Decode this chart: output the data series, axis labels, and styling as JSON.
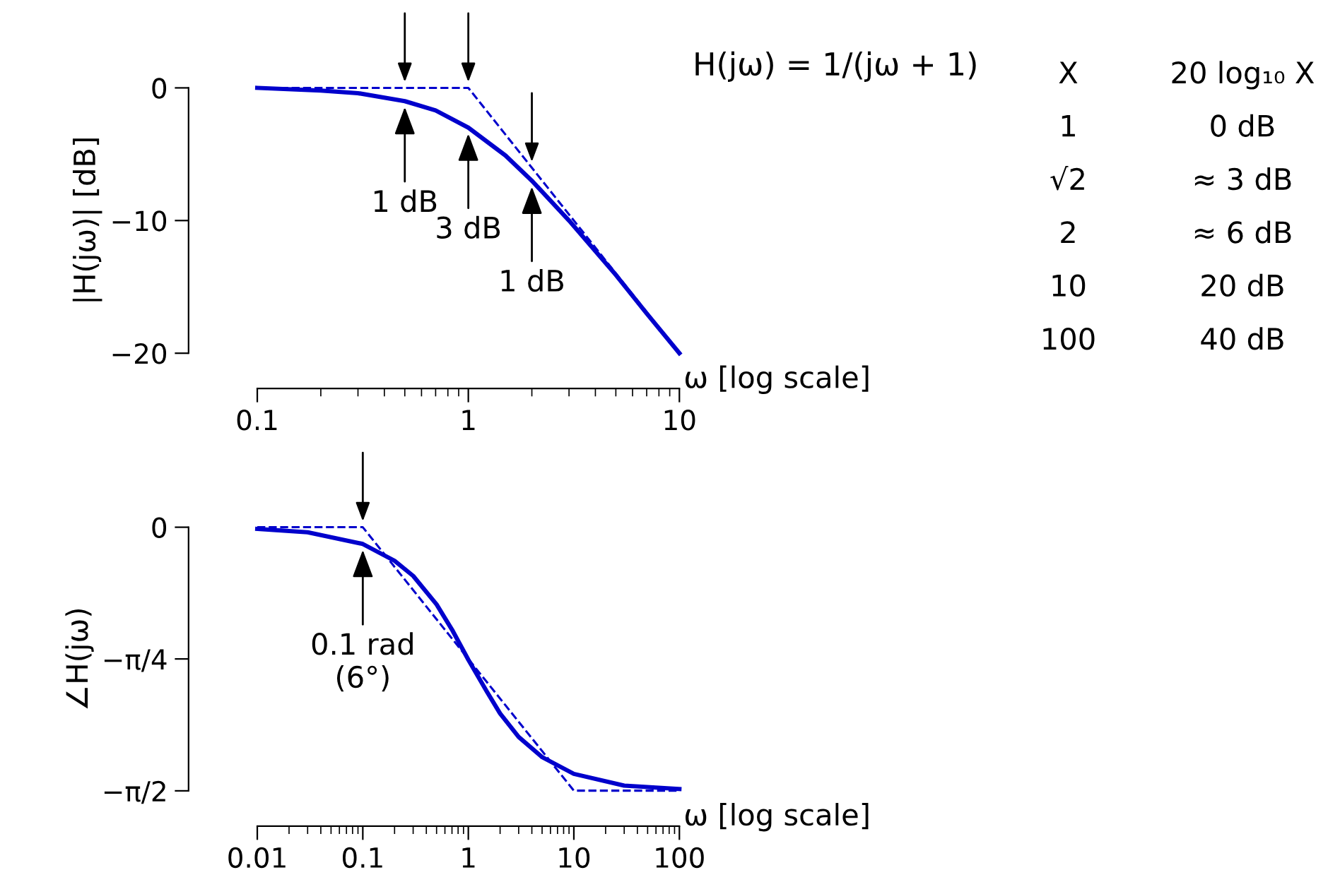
{
  "chart_data": [
    {
      "type": "line",
      "ylabel": "|H(jω)| [dB]",
      "xlabel": "ω [log scale]",
      "log": "x",
      "xlim": [
        0.1,
        10
      ],
      "ylim": [
        -20,
        0
      ],
      "xticks": [
        0.1,
        1,
        10
      ],
      "yticks": [
        {
          "value": 0,
          "label": "0"
        },
        {
          "value": -10,
          "label": "−10"
        },
        {
          "value": -20,
          "label": "−20"
        }
      ],
      "series": [
        {
          "type": "line",
          "color": "#0000cc",
          "line_style": "solid",
          "x": [
            0.1,
            0.2,
            0.3,
            0.5,
            0.7,
            1,
            1.5,
            2,
            3,
            5,
            7,
            10
          ],
          "values": [
            0.0,
            -0.2,
            -0.4,
            -1.0,
            -1.7,
            -3.0,
            -5.1,
            -7.0,
            -10.0,
            -14.1,
            -17.0,
            -20.0
          ]
        },
        {
          "type": "line",
          "color": "#0000cc",
          "line_style": "dashed",
          "x": [
            0.1,
            1,
            10
          ],
          "values": [
            0,
            0,
            -20
          ]
        }
      ],
      "annotations": [
        "H(jω) = 1/(jω + 1)",
        {
          "text": "1 dB",
          "x": 0.5,
          "y": -1.0
        },
        {
          "text": "3 dB",
          "x": 1,
          "y": -3.0
        },
        {
          "text": "1 dB",
          "x": 2,
          "y": -7.0
        }
      ]
    },
    {
      "type": "other",
      "annotations": [
        "X",
        "20 log₁₀ X",
        "1",
        "0 dB",
        "√2",
        "≈ 3 dB",
        "2",
        "≈ 6 dB",
        "10",
        "20 dB",
        "100",
        "40 dB"
      ]
    },
    {
      "type": "line",
      "ylabel": "∠H(jω)",
      "xlabel": "ω [log scale]",
      "log": "x",
      "xlim": [
        0.01,
        100
      ],
      "ylim": [
        -1.571,
        0
      ],
      "xticks": [
        0.01,
        0.1,
        1,
        10,
        100
      ],
      "yticks": [
        {
          "value": 0,
          "label": "0"
        },
        {
          "value": -0.785,
          "label": "−π/4"
        },
        {
          "value": -1.571,
          "label": "−π/2"
        }
      ],
      "series": [
        {
          "type": "line",
          "color": "#0000cc",
          "line_style": "solid",
          "x": [
            0.01,
            0.03,
            0.1,
            0.2,
            0.3,
            0.5,
            0.7,
            1,
            1.5,
            2,
            3,
            5,
            10,
            30,
            100
          ],
          "values": [
            -0.01,
            -0.03,
            -0.1,
            -0.2,
            -0.29,
            -0.46,
            -0.61,
            -0.79,
            -0.98,
            -1.11,
            -1.25,
            -1.37,
            -1.47,
            -1.54,
            -1.56
          ]
        },
        {
          "type": "line",
          "color": "#0000cc",
          "line_style": "dashed",
          "x": [
            0.01,
            0.1,
            10,
            100
          ],
          "values": [
            0,
            0,
            -1.57,
            -1.57
          ]
        }
      ],
      "annotations": [
        {
          "text": "0.1 rad\n(6°)",
          "x": 0.1,
          "y": -0.1
        }
      ]
    }
  ]
}
